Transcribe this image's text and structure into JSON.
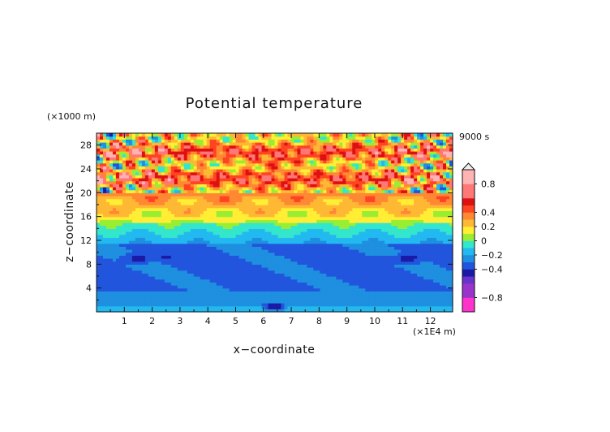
{
  "chart_data": {
    "type": "heatmap",
    "title": "Potential temperature",
    "xlabel": "x−coordinate",
    "ylabel": "z−coordinate",
    "x_unit": "(×1E4 m)",
    "y_unit": "(×1000 m)",
    "time_label": "9000 s",
    "xlim": [
      0,
      12.8
    ],
    "ylim": [
      0,
      30
    ],
    "x_ticks": [
      "1",
      "2",
      "3",
      "4",
      "5",
      "6",
      "7",
      "8",
      "9",
      "10",
      "11",
      "12"
    ],
    "y_ticks": [
      "4",
      "8",
      "12",
      "16",
      "20",
      "24",
      "28"
    ],
    "colorbar": {
      "tick_labels": [
        "0.8",
        "0.4",
        "0.2",
        "0",
        "−0.2",
        "−0.4",
        "−0.8"
      ],
      "tick_values": [
        0.8,
        0.4,
        0.2,
        0,
        -0.2,
        -0.4,
        -0.8
      ],
      "levels": [
        -1.0,
        -0.8,
        -0.6,
        -0.5,
        -0.4,
        -0.3,
        -0.2,
        -0.1,
        0,
        0.1,
        0.2,
        0.3,
        0.4,
        0.5,
        0.6,
        0.8,
        1.0
      ],
      "colors": [
        "#ff33cc",
        "#9933cc",
        "#6633cc",
        "#1a1aa6",
        "#2255dd",
        "#1f8fe0",
        "#22b8f0",
        "#33e6cc",
        "#99ee33",
        "#ffee33",
        "#ffb833",
        "#ff8833",
        "#ff4422",
        "#dd1111",
        "#ff7777",
        "#ffb3b3"
      ],
      "overflow": "upper"
    },
    "fields": {
      "surface_layers": [
        {
          "z_range": [
            0,
            1.2
          ],
          "value": -0.15
        },
        {
          "z_range": [
            1.2,
            3.5
          ],
          "value": -0.25
        },
        {
          "z_range": [
            3.5,
            11.5
          ],
          "value": -0.3
        },
        {
          "z_range": [
            11.5,
            15
          ],
          "value": -0.1
        },
        {
          "z_range": [
            15,
            30
          ],
          "value": 0.3
        }
      ],
      "note_regions": [
        {
          "center": [
            6.4,
            1.0
          ],
          "value": -0.5
        },
        {
          "center": [
            1.5,
            9.0
          ],
          "value": -0.45
        },
        {
          "center": [
            11.2,
            9.0
          ],
          "value": -0.45
        }
      ]
    }
  }
}
